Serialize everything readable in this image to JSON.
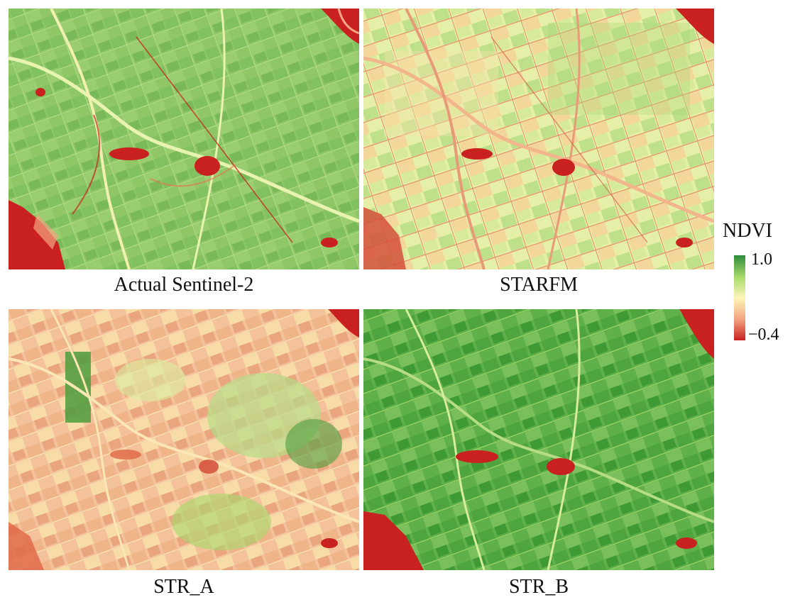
{
  "panels": [
    {
      "id": "actual",
      "caption": "Actual Sentinel-2",
      "tone": "green"
    },
    {
      "id": "starfm",
      "caption": "STARFM",
      "tone": "mixed"
    },
    {
      "id": "str_a",
      "caption": "STR_A",
      "tone": "reddish"
    },
    {
      "id": "str_b",
      "caption": "STR_B",
      "tone": "deep-green"
    }
  ],
  "legend": {
    "title": "NDVI",
    "max_label": "1.0",
    "min_label": "−0.4",
    "colors": {
      "high": "#2e8b3a",
      "mid_high": "#a6d96a",
      "mid": "#fcf6b8",
      "mid_low": "#f4a582",
      "low": "#c8211f"
    }
  }
}
